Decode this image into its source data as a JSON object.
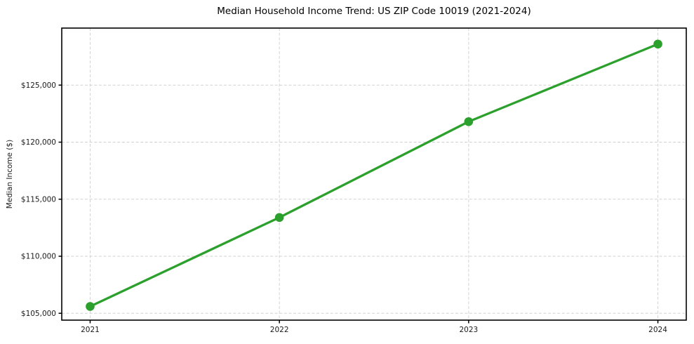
{
  "chart_data": {
    "type": "line",
    "title": "Median Household Income Trend: US ZIP Code 10019 (2021-2024)",
    "xlabel": "",
    "ylabel": "Median Income ($)",
    "x": [
      2021,
      2022,
      2023,
      2024
    ],
    "values": [
      105600,
      113400,
      121800,
      128600
    ],
    "categories": [
      "2021",
      "2022",
      "2023",
      "2024"
    ],
    "xticks": [
      2021,
      2022,
      2023,
      2024
    ],
    "xtick_labels": [
      "2021",
      "2022",
      "2023",
      "2024"
    ],
    "yticks": [
      105000,
      110000,
      115000,
      120000,
      125000
    ],
    "ytick_labels": [
      "$105,000",
      "$110,000",
      "$115,000",
      "$120,000",
      "$125,000"
    ],
    "xlim": [
      2020.85,
      2024.15
    ],
    "ylim": [
      104400,
      130000
    ],
    "line_color": "#2ca02c",
    "marker_color": "#2ca02c",
    "grid": true,
    "grid_style": "dashed",
    "grid_color": "#d2d2d2",
    "axis_color": "#000000",
    "tick_label_color": "#1a1a1a",
    "legend": "none",
    "background": "#ffffff"
  }
}
